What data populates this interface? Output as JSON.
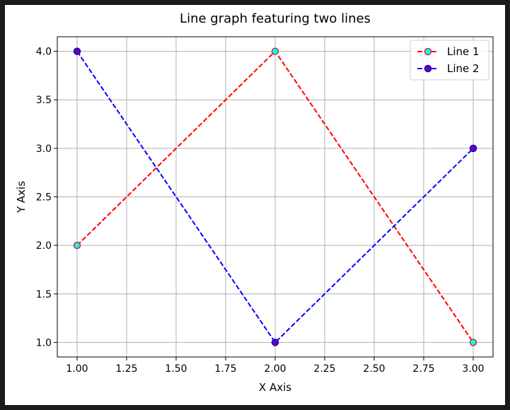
{
  "chart_data": {
    "type": "line",
    "title": "Line graph featuring two lines",
    "xlabel": "X Axis",
    "ylabel": "Y Axis",
    "xlim": [
      0.9,
      3.1
    ],
    "ylim": [
      0.85,
      4.15
    ],
    "x_ticks": [
      1.0,
      1.25,
      1.5,
      1.75,
      2.0,
      2.25,
      2.5,
      2.75,
      3.0
    ],
    "x_tick_labels": [
      "1.00",
      "1.25",
      "1.50",
      "1.75",
      "2.00",
      "2.25",
      "2.50",
      "2.75",
      "3.00"
    ],
    "y_ticks": [
      1.0,
      1.5,
      2.0,
      2.5,
      3.0,
      3.5,
      4.0
    ],
    "y_tick_labels": [
      "1.0",
      "1.5",
      "2.0",
      "2.5",
      "3.0",
      "3.5",
      "4.0"
    ],
    "grid": true,
    "legend_position": "top-right",
    "series": [
      {
        "name": "Line 1",
        "x": [
          1,
          2,
          3
        ],
        "y": [
          2,
          4,
          1
        ],
        "line_color": "#ff0000",
        "marker_face": "#00ffff",
        "marker_edge": "#cc3333",
        "line_style": "dashed"
      },
      {
        "name": "Line 2",
        "x": [
          1,
          2,
          3
        ],
        "y": [
          4,
          1,
          3
        ],
        "line_color": "#0000ff",
        "marker_face": "#800080",
        "marker_edge": "#0000ff",
        "line_style": "dashed"
      }
    ]
  }
}
